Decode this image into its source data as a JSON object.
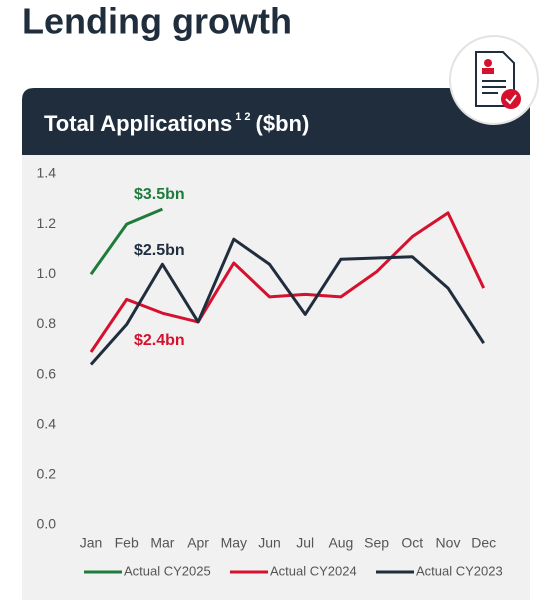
{
  "header": {
    "title": "Lending growth"
  },
  "chart_data": {
    "type": "line",
    "title": "Total Applications",
    "title_superscript": "1 2",
    "title_units": "($bn)",
    "categories": [
      "Jan",
      "Feb",
      "Mar",
      "Apr",
      "May",
      "Jun",
      "Jul",
      "Aug",
      "Sep",
      "Oct",
      "Nov",
      "Dec"
    ],
    "series": [
      {
        "name": "Actual CY2025",
        "color": "#1e7b3c",
        "values": [
          1.0,
          1.2,
          1.26,
          null,
          null,
          null,
          null,
          null,
          null,
          null,
          null,
          null
        ]
      },
      {
        "name": "Actual CY2024",
        "color": "#d5112e",
        "values": [
          0.69,
          0.9,
          0.845,
          0.81,
          1.045,
          0.91,
          0.92,
          0.91,
          1.01,
          1.15,
          1.245,
          0.945
        ]
      },
      {
        "name": "Actual CY2023",
        "color": "#1f2d3d",
        "values": [
          0.64,
          0.8,
          1.04,
          0.81,
          1.14,
          1.04,
          0.84,
          1.06,
          1.065,
          1.07,
          0.945,
          0.725
        ]
      }
    ],
    "annotations": [
      {
        "text": "$3.5bn",
        "color": "#1e7b3c"
      },
      {
        "text": "$2.5bn",
        "color": "#1f2d3d"
      },
      {
        "text": "$2.4bn",
        "color": "#d5112e"
      }
    ],
    "ylim": [
      0,
      1.4
    ],
    "yticks": [
      {
        "value": 0,
        "label": "0.0"
      },
      0.2,
      0.4,
      0.6,
      0.8,
      {
        "value": 1,
        "label": "1.0"
      },
      1.2,
      1.4
    ],
    "grid": false,
    "legend": "bottom"
  }
}
